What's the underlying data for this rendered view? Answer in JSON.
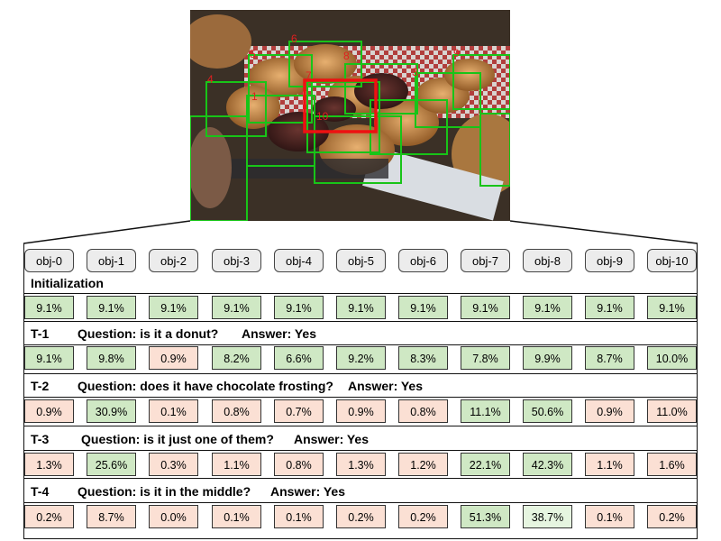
{
  "photo": {
    "box_labels": [
      {
        "text": "1",
        "color": "#e02020"
      },
      {
        "text": "4",
        "color": "#e02020"
      },
      {
        "text": "5",
        "color": "#e02020"
      },
      {
        "text": "6",
        "color": "#e02020"
      },
      {
        "text": "7",
        "color": "#e02020"
      },
      {
        "text": "8",
        "color": "#e02020"
      },
      {
        "text": "3",
        "color": "#e02020"
      },
      {
        "text": "9",
        "color": "#e02020"
      },
      {
        "text": "10",
        "color": "#e02020"
      }
    ],
    "box_color": "#18c418",
    "selected_box_color": "#ee1111"
  },
  "objects": [
    "obj-0",
    "obj-1",
    "obj-2",
    "obj-3",
    "obj-4",
    "obj-5",
    "obj-6",
    "obj-7",
    "obj-8",
    "obj-9",
    "obj-10"
  ],
  "initialization": {
    "label": "Initialization",
    "probs": [
      "9.1%",
      "9.1%",
      "9.1%",
      "9.1%",
      "9.1%",
      "9.1%",
      "9.1%",
      "9.1%",
      "9.1%",
      "9.1%",
      "9.1%"
    ],
    "colors": [
      "g",
      "g",
      "g",
      "g",
      "g",
      "g",
      "g",
      "g",
      "g",
      "g",
      "g"
    ]
  },
  "turns": [
    {
      "turn": "T-1",
      "question": "Question: is it a donut?",
      "answer": "Answer: Yes",
      "probs": [
        "9.1%",
        "9.8%",
        "0.9%",
        "8.2%",
        "6.6%",
        "9.2%",
        "8.3%",
        "7.8%",
        "9.9%",
        "8.7%",
        "10.0%"
      ],
      "colors": [
        "g",
        "g",
        "r",
        "g",
        "g",
        "g",
        "g",
        "g",
        "g",
        "g",
        "g"
      ]
    },
    {
      "turn": "T-2",
      "question": "Question: does it have chocolate frosting?",
      "answer": "Answer: Yes",
      "probs": [
        "0.9%",
        "30.9%",
        "0.1%",
        "0.8%",
        "0.7%",
        "0.9%",
        "0.8%",
        "11.1%",
        "50.6%",
        "0.9%",
        "11.0%"
      ],
      "colors": [
        "r",
        "g",
        "r",
        "r",
        "r",
        "r",
        "r",
        "g",
        "g",
        "r",
        "r"
      ]
    },
    {
      "turn": "T-3",
      "question": "Question: is it just one of them?",
      "answer": "Answer: Yes",
      "probs": [
        "1.3%",
        "25.6%",
        "0.3%",
        "1.1%",
        "0.8%",
        "1.3%",
        "1.2%",
        "22.1%",
        "42.3%",
        "1.1%",
        "1.6%"
      ],
      "colors": [
        "r",
        "g",
        "r",
        "r",
        "r",
        "r",
        "r",
        "g",
        "g",
        "r",
        "r"
      ]
    },
    {
      "turn": "T-4",
      "question": "Question: is it in the middle?",
      "answer": "Answer: Yes",
      "probs": [
        "0.2%",
        "8.7%",
        "0.0%",
        "0.1%",
        "0.1%",
        "0.2%",
        "0.2%",
        "51.3%",
        "38.7%",
        "0.1%",
        "0.2%"
      ],
      "colors": [
        "r",
        "r",
        "r",
        "r",
        "r",
        "r",
        "r",
        "g",
        "l",
        "r",
        "r"
      ]
    }
  ],
  "palette": {
    "g": "#cfe8c4",
    "r": "#fbe0d4",
    "l": "#e6f5e0"
  }
}
